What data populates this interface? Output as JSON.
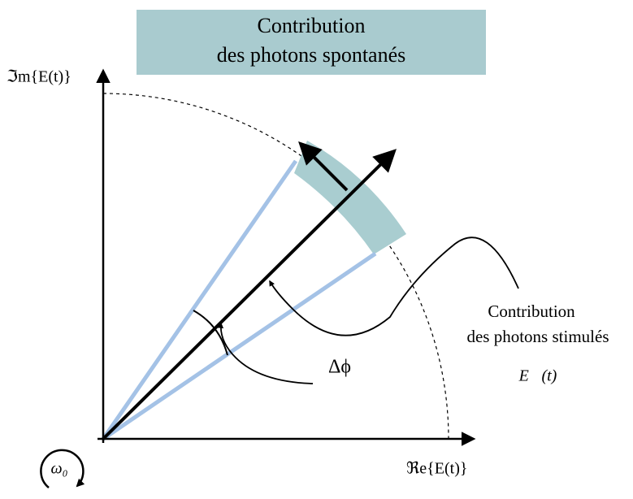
{
  "title": {
    "lines": [
      "Contribution",
      "des photons spontanés"
    ]
  },
  "axes": {
    "y_label": "ℑm{E(t)}",
    "x_label": "ℜe{E(t)}"
  },
  "annotations": {
    "stimulated": [
      "Contribution",
      "des photons stimulés"
    ],
    "field": "E⃗(t)",
    "angle": "Δϕ",
    "rotation": "ω₀"
  }
}
